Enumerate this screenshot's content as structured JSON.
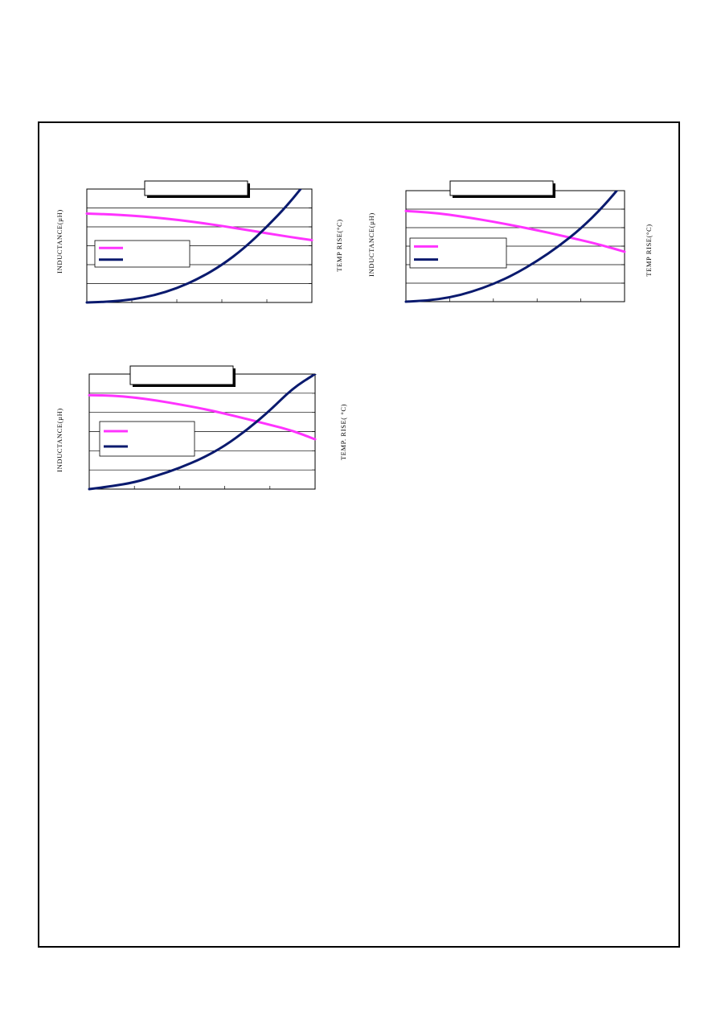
{
  "page": {
    "colors": {
      "border": "#000000",
      "inductance_line": "#ff33ff",
      "temp_line": "#0a1a6e"
    }
  },
  "chart_data": [
    {
      "type": "line",
      "x": [
        0,
        1,
        2,
        3,
        4,
        5,
        6,
        7,
        8,
        9,
        10
      ],
      "series": [
        {
          "color": "#ff33ff",
          "axis": "left",
          "values": [
            4.7,
            4.66,
            4.6,
            4.5,
            4.38,
            4.22,
            4.05,
            3.86,
            3.66,
            3.47,
            3.3
          ]
        },
        {
          "color": "#0a1a6e",
          "axis": "right",
          "values": [
            0,
            0.08,
            0.3,
            0.75,
            1.5,
            2.55,
            3.95,
            5.75,
            8.0,
            10.5,
            13.5
          ]
        }
      ],
      "ylabel": "INDUCTANCE(µH)",
      "y2label": "TEMP RISE(°C)",
      "grid": true,
      "legend": "left-middle",
      "title_box": "",
      "xlim": [
        0,
        10
      ],
      "ylim": [
        0,
        6
      ],
      "y2lim": [
        0,
        12
      ]
    },
    {
      "type": "line",
      "x": [
        0,
        1,
        2,
        3,
        4,
        5,
        6,
        7,
        8,
        9,
        10
      ],
      "series": [
        {
          "color": "#ff33ff",
          "axis": "left",
          "values": [
            4.9,
            4.83,
            4.7,
            4.52,
            4.32,
            4.1,
            3.86,
            3.6,
            3.33,
            3.04,
            2.7
          ]
        },
        {
          "color": "#0a1a6e",
          "axis": "right",
          "values": [
            0,
            0.12,
            0.45,
            1.05,
            1.9,
            3.0,
            4.4,
            6.0,
            7.9,
            10.2,
            13.0
          ]
        }
      ],
      "ylabel": "INDUCTANCE(µH)",
      "y2label": "TEMP RISE(°C)",
      "grid": true,
      "legend": "left-middle",
      "title_box": "",
      "xlim": [
        0,
        10
      ],
      "ylim": [
        0,
        6
      ],
      "y2lim": [
        0,
        12
      ]
    },
    {
      "type": "line",
      "x": [
        0,
        1,
        2,
        3,
        4,
        5,
        6,
        7,
        8,
        9,
        10
      ],
      "series": [
        {
          "color": "#ff33ff",
          "axis": "left",
          "values": [
            4.9,
            4.88,
            4.78,
            4.62,
            4.42,
            4.2,
            3.94,
            3.65,
            3.35,
            3.05,
            2.6
          ]
        },
        {
          "color": "#0a1a6e",
          "axis": "right",
          "values": [
            0,
            0.3,
            0.7,
            1.4,
            2.2,
            3.2,
            4.5,
            6.2,
            8.2,
            10.5,
            12.0
          ]
        }
      ],
      "ylabel": "INDUCTANCE(µH)",
      "y2label": "TEMP. RISE( °C)",
      "grid": true,
      "legend": "left-middle",
      "title_box": "",
      "xlim": [
        0,
        10
      ],
      "ylim": [
        0,
        6
      ],
      "y2lim": [
        0,
        12
      ]
    }
  ]
}
